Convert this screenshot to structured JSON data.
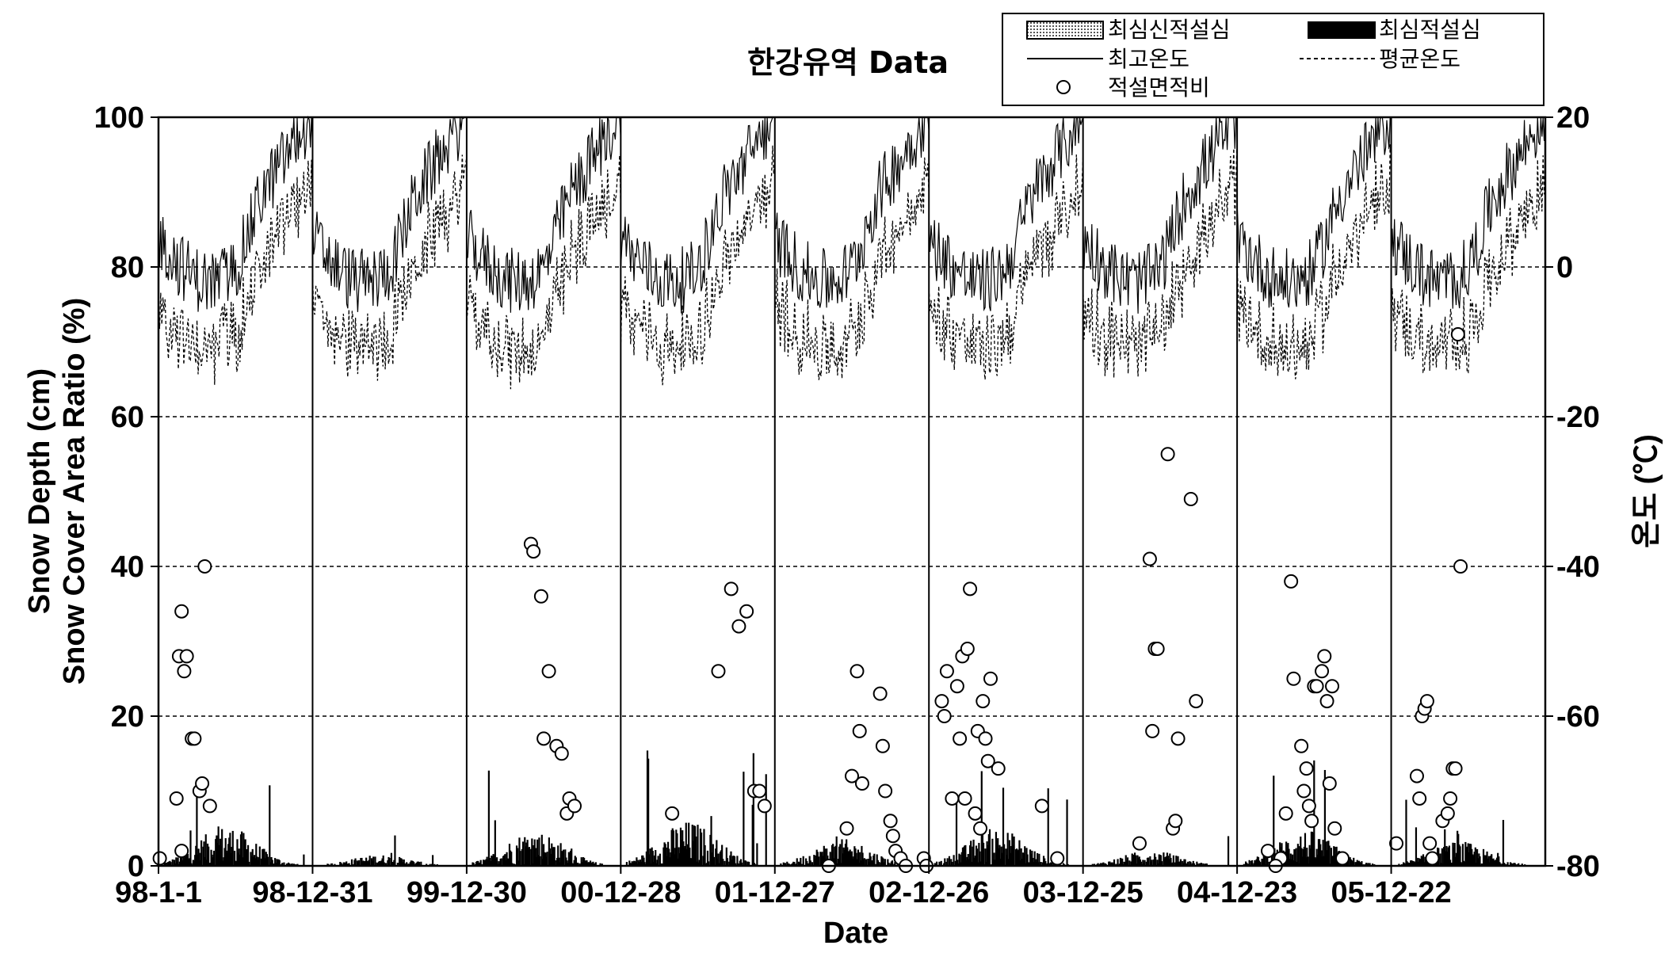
{
  "chart_data": {
    "type": "line",
    "title": "한강유역  Data",
    "xlabel": "Date",
    "ylabel_line1": "Snow Depth (cm)",
    "ylabel_line2": "Snow Cover Area Ratio (%)",
    "y2label": "온도 (℃)",
    "ylim": [
      0,
      100
    ],
    "y2lim": [
      -80,
      20
    ],
    "yticks": [
      "0",
      "20",
      "40",
      "60",
      "80",
      "100"
    ],
    "y2ticks": [
      "-80",
      "-60",
      "-40",
      "-20",
      "0",
      "20"
    ],
    "grid": "horizontal dashed",
    "legend_position": "top-right",
    "seasons": [
      "98-1-1",
      "98-12-31",
      "99-12-30",
      "00-12-28",
      "01-12-27",
      "02-12-26",
      "03-12-25",
      "04-12-23",
      "05-12-22"
    ],
    "legend": {
      "new_snow": "최심신적설심",
      "snow_depth": "최심적설심",
      "max_temp": "최고온도",
      "mean_temp": "평균온도",
      "scar": "적설면적비"
    },
    "snow_cover_ratio": [
      [
        [
          0.5,
          1
        ],
        [
          8,
          28
        ],
        [
          9,
          34
        ],
        [
          10,
          26
        ],
        [
          11,
          28
        ],
        [
          13,
          17
        ],
        [
          14,
          17
        ],
        [
          16,
          10
        ],
        [
          17,
          11
        ],
        [
          18,
          40
        ],
        [
          20,
          8
        ],
        [
          7,
          9
        ],
        [
          9,
          2
        ]
      ],
      [],
      [
        [
          25,
          43
        ],
        [
          26,
          42
        ],
        [
          29,
          36
        ],
        [
          30,
          17
        ],
        [
          32,
          26
        ],
        [
          35,
          16
        ],
        [
          37,
          15
        ],
        [
          39,
          7
        ],
        [
          40,
          9
        ],
        [
          42,
          8
        ]
      ],
      [
        [
          20,
          7
        ],
        [
          38,
          26
        ],
        [
          43,
          37
        ],
        [
          46,
          32
        ],
        [
          49,
          34
        ],
        [
          52,
          10
        ],
        [
          54,
          10
        ],
        [
          56,
          8
        ]
      ],
      [
        [
          21,
          0
        ],
        [
          28,
          5
        ],
        [
          30,
          12
        ],
        [
          32,
          26
        ],
        [
          33,
          18
        ],
        [
          34,
          11
        ],
        [
          41,
          23
        ],
        [
          42,
          16
        ],
        [
          43,
          10
        ],
        [
          45,
          6
        ],
        [
          46,
          4
        ],
        [
          47,
          2
        ],
        [
          49,
          1
        ],
        [
          51,
          0
        ],
        [
          58,
          1
        ],
        [
          59,
          0
        ]
      ],
      [
        [
          5,
          22
        ],
        [
          6,
          20
        ],
        [
          7,
          26
        ],
        [
          9,
          9
        ],
        [
          11,
          24
        ],
        [
          12,
          17
        ],
        [
          13,
          28
        ],
        [
          14,
          9
        ],
        [
          15,
          29
        ],
        [
          16,
          37
        ],
        [
          18,
          7
        ],
        [
          19,
          18
        ],
        [
          20,
          5
        ],
        [
          21,
          22
        ],
        [
          22,
          17
        ],
        [
          23,
          14
        ],
        [
          24,
          25
        ],
        [
          27,
          13
        ],
        [
          44,
          8
        ],
        [
          50,
          1
        ]
      ],
      [
        [
          22,
          3
        ],
        [
          26,
          41
        ],
        [
          27,
          18
        ],
        [
          28,
          29
        ],
        [
          29,
          29
        ],
        [
          33,
          55
        ],
        [
          35,
          5
        ],
        [
          36,
          6
        ],
        [
          37,
          17
        ],
        [
          42,
          49
        ],
        [
          44,
          22
        ]
      ],
      [
        [
          17,
          1
        ],
        [
          19,
          7
        ],
        [
          21,
          38
        ],
        [
          22,
          25
        ],
        [
          25,
          16
        ],
        [
          26,
          10
        ],
        [
          27,
          13
        ],
        [
          28,
          8
        ],
        [
          29,
          6
        ],
        [
          30,
          24
        ],
        [
          31,
          24
        ],
        [
          33,
          26
        ],
        [
          34,
          28
        ],
        [
          35,
          22
        ],
        [
          36,
          11
        ],
        [
          37,
          24
        ],
        [
          38,
          5
        ],
        [
          41,
          1
        ],
        [
          12,
          2
        ],
        [
          15,
          0
        ]
      ],
      [
        [
          2,
          3
        ],
        [
          10,
          12
        ],
        [
          11,
          9
        ],
        [
          12,
          20
        ],
        [
          13,
          21
        ],
        [
          14,
          22
        ],
        [
          15,
          3
        ],
        [
          16,
          1
        ],
        [
          20,
          6
        ],
        [
          22,
          7
        ],
        [
          23,
          9
        ],
        [
          24,
          13
        ],
        [
          25,
          13
        ],
        [
          26,
          71
        ],
        [
          27,
          40
        ]
      ]
    ]
  }
}
